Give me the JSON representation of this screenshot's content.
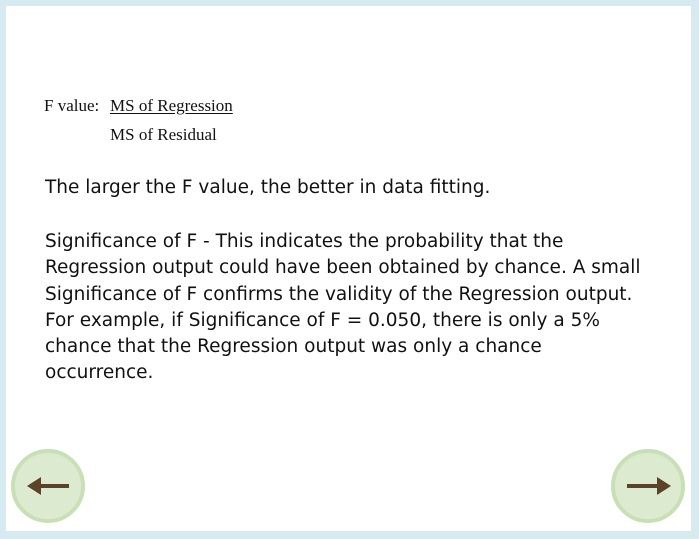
{
  "formula": {
    "label": "F value:",
    "numerator": "MS of Regression",
    "denominator": "MS of Residual"
  },
  "paragraphs": {
    "p1": "The larger the F value, the better in data fitting.",
    "p2": "Significance of F - This indicates the probability that the Regression output could have been obtained by chance. A small Significance of F confirms the validity of the Regression output. For example, if Significance of F = 0.050, there is only a 5% chance that the Regression output was only a chance occurrence."
  },
  "navigation": {
    "prev_icon": "arrow-left-icon",
    "next_icon": "arrow-right-icon"
  },
  "colors": {
    "background_border": "#d6ebf1",
    "button_fill": "#dcebd0",
    "arrow": "#5c4228"
  }
}
